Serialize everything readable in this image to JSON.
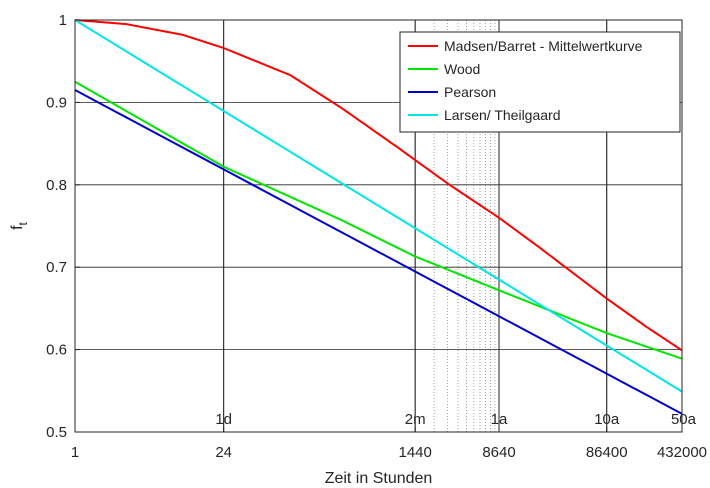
{
  "chart_data": {
    "type": "line",
    "title": "",
    "xlabel": "Zeit in Stunden",
    "ylabel": "f",
    "ylabel_subscript": "t",
    "x_scale": "log",
    "xlim": [
      1,
      432000
    ],
    "ylim": [
      0.5,
      1
    ],
    "x_ticks": [
      {
        "value": 1,
        "label": "1"
      },
      {
        "value": 24,
        "label": "24"
      },
      {
        "value": 1440,
        "label": "1440"
      },
      {
        "value": 8640,
        "label": "8640"
      },
      {
        "value": 86400,
        "label": "86400"
      },
      {
        "value": 432000,
        "label": "432000"
      }
    ],
    "y_ticks": [
      {
        "value": 0.5,
        "label": "0.5"
      },
      {
        "value": 0.6,
        "label": "0.6"
      },
      {
        "value": 0.7,
        "label": "0.7"
      },
      {
        "value": 0.8,
        "label": "0.8"
      },
      {
        "value": 0.9,
        "label": "0.9"
      },
      {
        "value": 1,
        "label": "1"
      }
    ],
    "grid": true,
    "legend_position": "top-right",
    "time_markers": [
      {
        "value": 24,
        "label": "1d"
      },
      {
        "value": 1440,
        "label": "2m"
      },
      {
        "value": 8640,
        "label": "1a"
      },
      {
        "value": 86400,
        "label": "10a"
      },
      {
        "value": 432000,
        "label": "50a"
      }
    ],
    "dotted_lines": [
      2160,
      2880,
      3600,
      4320,
      5040,
      5760,
      6480,
      7200,
      7920
    ],
    "series": [
      {
        "name": "Madsen/Barret - Mittelwertkurve",
        "color": "#ff0000",
        "x": [
          1,
          3,
          10,
          24,
          100,
          300,
          1000,
          1440,
          3000,
          8640,
          20000,
          86400,
          200000,
          432000
        ],
        "y": [
          1.0,
          0.995,
          0.982,
          0.966,
          0.933,
          0.893,
          0.845,
          0.83,
          0.8,
          0.76,
          0.725,
          0.662,
          0.628,
          0.599
        ]
      },
      {
        "name": "Wood",
        "color": "#00e600",
        "x": [
          1,
          24,
          300,
          1440,
          8640,
          86400,
          432000
        ],
        "y": [
          0.925,
          0.822,
          0.757,
          0.713,
          0.672,
          0.62,
          0.589
        ]
      },
      {
        "name": "Pearson",
        "color": "#0000cc",
        "x": [
          1,
          432000
        ],
        "y": [
          0.915,
          0.522
        ]
      },
      {
        "name": "Larsen/ Theilgaard",
        "color": "#00e6e6",
        "x": [
          1,
          432000
        ],
        "y": [
          1.0,
          0.549
        ]
      }
    ]
  }
}
